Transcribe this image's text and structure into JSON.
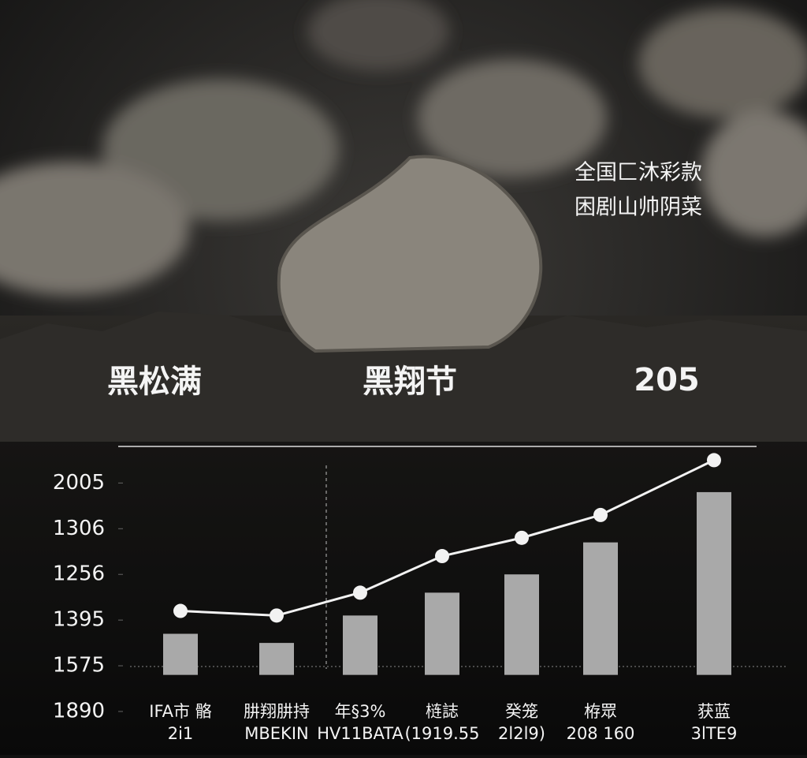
{
  "headline": {
    "left": "黑松满",
    "center": "黑翔节",
    "right": "205"
  },
  "caption": [
    "全国匚沐彩款",
    "困剧山帅阴菜"
  ],
  "chart_data": {
    "type": "bar",
    "categories": [
      "IFA市 骼",
      "肼翔肼持",
      "年§3%",
      "梿誌",
      "癸笼",
      "栫眾",
      "获蓝"
    ],
    "category_codes": [
      "2i1",
      "MBEKIN",
      "HV11BATA",
      "(1919.55",
      "2l2l9)",
      "208 160",
      "3lTE9"
    ],
    "values": [
      0.9,
      0.7,
      1.3,
      1.8,
      2.2,
      2.9,
      4.0
    ],
    "line_values": [
      1.4,
      1.3,
      1.8,
      2.6,
      3.0,
      3.5,
      4.7
    ],
    "color": "#a9a9a9",
    "line_color": "#f2f2f2",
    "ylim": [
      -0.8,
      5.0
    ],
    "yticks": [
      {
        "value": 4.2,
        "label": "2005"
      },
      {
        "value": 3.2,
        "label": "1306"
      },
      {
        "value": 2.2,
        "label": "1256"
      },
      {
        "value": 1.2,
        "label": "1395"
      },
      {
        "value": 0.2,
        "label": "1575"
      },
      {
        "value": -0.8,
        "label": "1890"
      }
    ]
  }
}
